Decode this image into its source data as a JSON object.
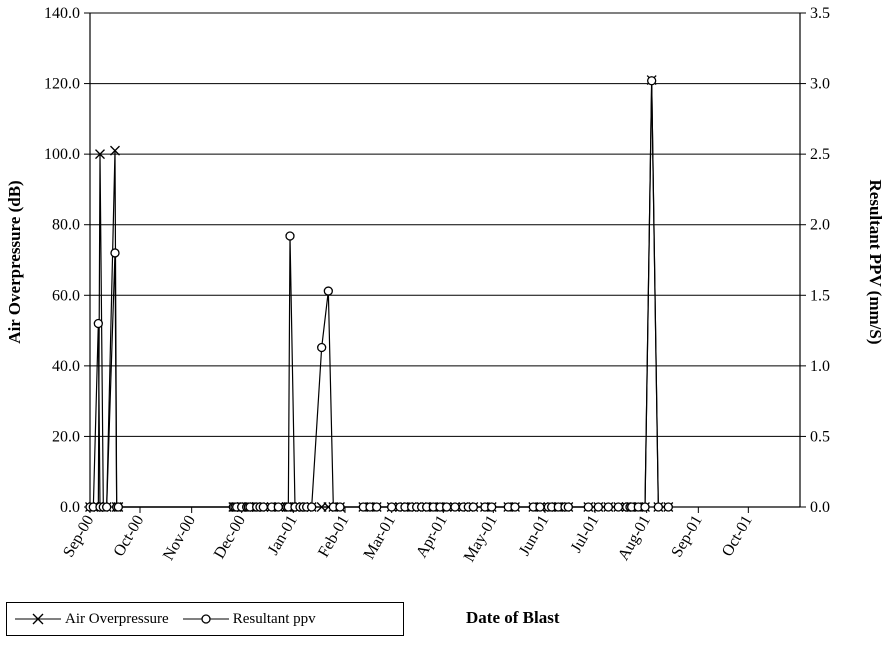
{
  "chart_data": {
    "type": "line",
    "xlabel": "Date of Blast",
    "ylabel_left": "Air  Overpressure (dB)",
    "ylabel_right": "Resultant PPV (mm/S)",
    "ylim_left": [
      0,
      140
    ],
    "ylim_right": [
      0,
      3.5
    ],
    "yticks_left": [
      "0.0",
      "20.0",
      "40.0",
      "60.0",
      "80.0",
      "100.0",
      "120.0",
      "140.0"
    ],
    "yticks_right": [
      "0.0",
      "0.5",
      "1.0",
      "1.5",
      "2.0",
      "2.5",
      "3.0",
      "3.5"
    ],
    "xlim": [
      "2000-09-01",
      "2001-11-01"
    ],
    "xticks": [
      {
        "date": "2000-09-01",
        "label": "Sep-00"
      },
      {
        "date": "2000-10-01",
        "label": "Oct-00"
      },
      {
        "date": "2000-11-01",
        "label": "Nov-00"
      },
      {
        "date": "2000-12-01",
        "label": "Dec-00"
      },
      {
        "date": "2001-01-01",
        "label": "Jan-01"
      },
      {
        "date": "2001-02-01",
        "label": "Feb-01"
      },
      {
        "date": "2001-03-01",
        "label": "Mar-01"
      },
      {
        "date": "2001-04-01",
        "label": "Apr-01"
      },
      {
        "date": "2001-05-01",
        "label": "May-01"
      },
      {
        "date": "2001-06-01",
        "label": "Jun-01"
      },
      {
        "date": "2001-07-01",
        "label": "Jul-01"
      },
      {
        "date": "2001-08-01",
        "label": "Aug-01"
      },
      {
        "date": "2001-09-01",
        "label": "Sep-01"
      },
      {
        "date": "2001-10-01",
        "label": "Oct-01"
      }
    ],
    "grid": "horizontal",
    "legend_position": "bottom-left",
    "series": [
      {
        "name": "Air Overpressure",
        "axis": "left",
        "marker": "x",
        "points": [
          [
            "2000-09-01",
            0
          ],
          [
            "2000-09-03",
            0
          ],
          [
            "2000-09-06",
            0
          ],
          [
            "2000-09-07",
            100
          ],
          [
            "2000-09-09",
            0
          ],
          [
            "2000-09-11",
            0
          ],
          [
            "2000-09-16",
            101
          ],
          [
            "2000-09-17",
            0
          ],
          [
            "2000-09-18",
            0
          ],
          [
            "2000-11-26",
            0
          ],
          [
            "2000-11-27",
            0
          ],
          [
            "2000-11-28",
            0
          ],
          [
            "2000-12-01",
            0
          ],
          [
            "2000-12-04",
            0
          ],
          [
            "2000-12-05",
            0
          ],
          [
            "2000-12-06",
            0
          ],
          [
            "2000-12-10",
            0
          ],
          [
            "2000-12-12",
            0
          ],
          [
            "2000-12-14",
            0
          ],
          [
            "2000-12-19",
            0
          ],
          [
            "2000-12-23",
            0
          ],
          [
            "2000-12-28",
            0
          ],
          [
            "2000-12-29",
            0
          ],
          [
            "2000-12-30",
            0
          ],
          [
            "2001-01-02",
            0
          ],
          [
            "2001-01-05",
            0
          ],
          [
            "2001-01-07",
            0
          ],
          [
            "2001-01-09",
            0
          ],
          [
            "2001-01-12",
            0
          ],
          [
            "2001-01-18",
            0
          ],
          [
            "2001-01-22",
            0
          ],
          [
            "2001-01-25",
            0
          ],
          [
            "2001-01-29",
            0
          ],
          [
            "2001-02-12",
            0
          ],
          [
            "2001-02-16",
            0
          ],
          [
            "2001-02-20",
            0
          ],
          [
            "2001-03-01",
            0
          ],
          [
            "2001-03-06",
            0
          ],
          [
            "2001-03-09",
            0
          ],
          [
            "2001-03-13",
            0
          ],
          [
            "2001-03-16",
            0
          ],
          [
            "2001-03-19",
            0
          ],
          [
            "2001-03-22",
            0
          ],
          [
            "2001-03-26",
            0
          ],
          [
            "2001-03-30",
            0
          ],
          [
            "2001-04-03",
            0
          ],
          [
            "2001-04-08",
            0
          ],
          [
            "2001-04-13",
            0
          ],
          [
            "2001-04-16",
            0
          ],
          [
            "2001-04-19",
            0
          ],
          [
            "2001-04-26",
            0
          ],
          [
            "2001-04-30",
            0
          ],
          [
            "2001-05-10",
            0
          ],
          [
            "2001-05-14",
            0
          ],
          [
            "2001-05-25",
            0
          ],
          [
            "2001-05-29",
            0
          ],
          [
            "2001-06-03",
            0
          ],
          [
            "2001-06-05",
            0
          ],
          [
            "2001-06-09",
            0
          ],
          [
            "2001-06-13",
            0
          ],
          [
            "2001-06-15",
            0
          ],
          [
            "2001-06-27",
            0
          ],
          [
            "2001-07-03",
            0
          ],
          [
            "2001-07-09",
            0
          ],
          [
            "2001-07-15",
            0
          ],
          [
            "2001-07-20",
            0
          ],
          [
            "2001-07-22",
            0
          ],
          [
            "2001-07-23",
            0
          ],
          [
            "2001-07-27",
            0
          ],
          [
            "2001-07-31",
            0
          ],
          [
            "2001-08-04",
            121
          ],
          [
            "2001-08-08",
            0
          ],
          [
            "2001-08-14",
            0
          ]
        ]
      },
      {
        "name": "Resultant ppv",
        "axis": "right",
        "marker": "o",
        "points": [
          [
            "2000-09-01",
            0
          ],
          [
            "2000-09-03",
            0
          ],
          [
            "2000-09-06",
            1.3
          ],
          [
            "2000-09-07",
            0
          ],
          [
            "2000-09-09",
            0
          ],
          [
            "2000-09-11",
            0
          ],
          [
            "2000-09-16",
            1.8
          ],
          [
            "2000-09-17",
            0
          ],
          [
            "2000-09-18",
            0
          ],
          [
            "2000-11-26",
            0
          ],
          [
            "2000-11-27",
            0
          ],
          [
            "2000-11-28",
            0
          ],
          [
            "2000-12-01",
            0
          ],
          [
            "2000-12-04",
            0
          ],
          [
            "2000-12-05",
            0
          ],
          [
            "2000-12-06",
            0
          ],
          [
            "2000-12-10",
            0
          ],
          [
            "2000-12-12",
            0
          ],
          [
            "2000-12-14",
            0
          ],
          [
            "2000-12-19",
            0
          ],
          [
            "2000-12-23",
            0
          ],
          [
            "2000-12-28",
            0
          ],
          [
            "2000-12-29",
            0
          ],
          [
            "2000-12-30",
            1.92
          ],
          [
            "2001-01-02",
            0
          ],
          [
            "2001-01-05",
            0
          ],
          [
            "2001-01-07",
            0
          ],
          [
            "2001-01-09",
            0
          ],
          [
            "2001-01-12",
            0
          ],
          [
            "2001-01-18",
            1.13
          ],
          [
            "2001-01-22",
            1.53
          ],
          [
            "2001-01-25",
            0
          ],
          [
            "2001-01-29",
            0
          ],
          [
            "2001-02-12",
            0
          ],
          [
            "2001-02-16",
            0
          ],
          [
            "2001-02-20",
            0
          ],
          [
            "2001-03-01",
            0
          ],
          [
            "2001-03-06",
            0
          ],
          [
            "2001-03-09",
            0
          ],
          [
            "2001-03-13",
            0
          ],
          [
            "2001-03-16",
            0
          ],
          [
            "2001-03-19",
            0
          ],
          [
            "2001-03-22",
            0
          ],
          [
            "2001-03-26",
            0
          ],
          [
            "2001-03-30",
            0
          ],
          [
            "2001-04-03",
            0
          ],
          [
            "2001-04-08",
            0
          ],
          [
            "2001-04-13",
            0
          ],
          [
            "2001-04-16",
            0
          ],
          [
            "2001-04-19",
            0
          ],
          [
            "2001-04-26",
            0
          ],
          [
            "2001-04-30",
            0
          ],
          [
            "2001-05-10",
            0
          ],
          [
            "2001-05-14",
            0
          ],
          [
            "2001-05-25",
            0
          ],
          [
            "2001-05-29",
            0
          ],
          [
            "2001-06-03",
            0
          ],
          [
            "2001-06-05",
            0
          ],
          [
            "2001-06-09",
            0
          ],
          [
            "2001-06-13",
            0
          ],
          [
            "2001-06-15",
            0
          ],
          [
            "2001-06-27",
            0
          ],
          [
            "2001-07-03",
            0
          ],
          [
            "2001-07-09",
            0
          ],
          [
            "2001-07-15",
            0
          ],
          [
            "2001-07-20",
            0
          ],
          [
            "2001-07-22",
            0
          ],
          [
            "2001-07-23",
            0
          ],
          [
            "2001-07-27",
            0
          ],
          [
            "2001-07-31",
            0
          ],
          [
            "2001-08-04",
            3.02
          ],
          [
            "2001-08-08",
            0
          ],
          [
            "2001-08-14",
            0
          ]
        ]
      }
    ]
  }
}
